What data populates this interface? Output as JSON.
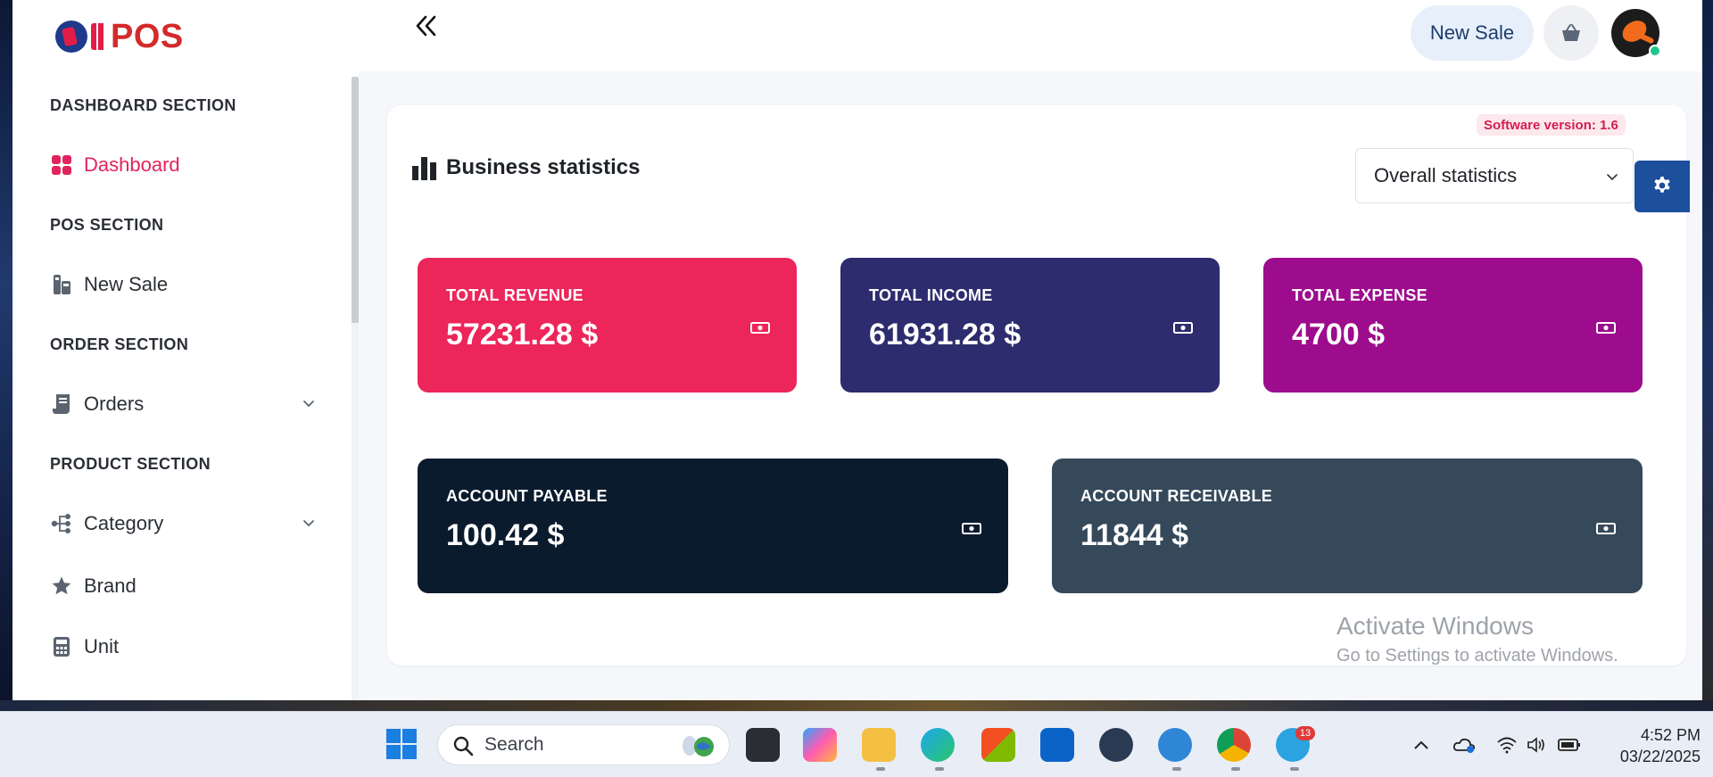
{
  "app": {
    "logo_text": "POS",
    "new_sale_button": "New Sale"
  },
  "sidebar": {
    "sections": [
      {
        "heading": "DASHBOARD SECTION",
        "items": [
          {
            "label": "Dashboard",
            "icon": "dashboard-grid-icon",
            "active": true
          }
        ]
      },
      {
        "heading": "POS SECTION",
        "items": [
          {
            "label": "New Sale",
            "icon": "cash-register-icon"
          }
        ]
      },
      {
        "heading": "ORDER SECTION",
        "items": [
          {
            "label": "Orders",
            "icon": "receipt-icon",
            "expandable": true
          }
        ]
      },
      {
        "heading": "PRODUCT SECTION",
        "items": [
          {
            "label": "Category",
            "icon": "hierarchy-icon",
            "expandable": true
          },
          {
            "label": "Brand",
            "icon": "star-icon"
          },
          {
            "label": "Unit",
            "icon": "calculator-icon"
          }
        ]
      }
    ]
  },
  "main": {
    "software_version": "Software version: 1.6",
    "title": "Business statistics",
    "filter": {
      "selected": "Overall statistics"
    },
    "stats": [
      {
        "label": "TOTAL REVENUE",
        "value": "57231.28 $",
        "color": "#ec255a"
      },
      {
        "label": "TOTAL INCOME",
        "value": "61931.28 $",
        "color": "#2c2c6e"
      },
      {
        "label": "TOTAL EXPENSE",
        "value": "4700 $",
        "color": "#9c0c8c"
      },
      {
        "label": "ACCOUNT PAYABLE",
        "value": "100.42 $",
        "color": "#0b1b2e"
      },
      {
        "label": "ACCOUNT RECEIVABLE",
        "value": "11844 $",
        "color": "#35495a"
      }
    ]
  },
  "watermark": {
    "line1": "Activate Windows",
    "line2": "Go to Settings to activate Windows."
  },
  "taskbar": {
    "search_placeholder": "Search",
    "telegram_badge": "13",
    "time": "4:52 PM",
    "date": "03/22/2025"
  }
}
